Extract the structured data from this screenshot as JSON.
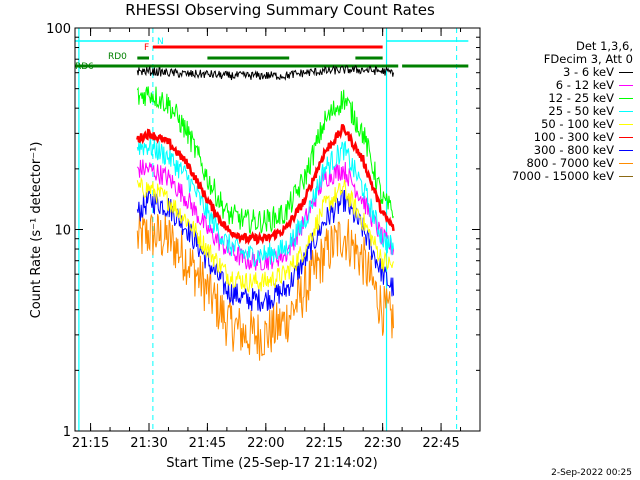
{
  "chart_data": {
    "type": "line",
    "title": "RHESSI Observing Summary Count Rates",
    "xlabel": "Start Time (25-Sep-17 21:14:02)",
    "ylabel": "Count Rate (s⁻¹ detector⁻¹)",
    "y_scale": "log",
    "ylim": [
      1,
      100
    ],
    "xlim": [
      "21:11",
      "22:55"
    ],
    "x_ticks": [
      "21:15",
      "21:30",
      "21:45",
      "22:00",
      "22:15",
      "22:30",
      "22:45"
    ],
    "y_ticks": [
      "1",
      "10",
      "100"
    ],
    "grid": false,
    "legend_position": "right",
    "legend_header": [
      "Det 1,3,6,",
      "FDecim 3, Att 0"
    ],
    "series": [
      {
        "name": "3 - 6 keV",
        "color": "#000000",
        "x": [
          "21:27",
          "21:30",
          "21:35",
          "21:40",
          "21:45",
          "21:50",
          "21:55",
          "22:00",
          "22:05",
          "22:10",
          "22:15",
          "22:20",
          "22:25",
          "22:30",
          "22:33"
        ],
        "values": [
          61,
          61,
          60,
          59,
          59,
          58,
          58,
          58,
          58,
          60,
          61,
          62,
          62,
          61,
          60
        ]
      },
      {
        "name": "6 - 12 keV",
        "color": "#ff00ff",
        "x": [
          "21:27",
          "21:30",
          "21:35",
          "21:40",
          "21:45",
          "21:50",
          "21:55",
          "22:00",
          "22:05",
          "22:10",
          "22:15",
          "22:20",
          "22:25",
          "22:30",
          "22:33"
        ],
        "values": [
          20,
          20,
          18,
          14,
          10,
          8,
          7,
          7,
          7.5,
          11,
          18,
          20,
          14,
          9,
          8
        ]
      },
      {
        "name": "12 - 25 keV",
        "color": "#00ff00",
        "x": [
          "21:27",
          "21:30",
          "21:35",
          "21:40",
          "21:45",
          "21:50",
          "21:55",
          "22:00",
          "22:05",
          "22:10",
          "22:15",
          "22:20",
          "22:25",
          "22:30",
          "22:33"
        ],
        "values": [
          45,
          48,
          42,
          30,
          18,
          12,
          11,
          11,
          12,
          18,
          34,
          45,
          30,
          14,
          12
        ]
      },
      {
        "name": "25 - 50 keV",
        "color": "#00ffff",
        "x": [
          "21:27",
          "21:30",
          "21:35",
          "21:40",
          "21:45",
          "21:50",
          "21:55",
          "22:00",
          "22:05",
          "22:10",
          "22:15",
          "22:20",
          "22:25",
          "22:30",
          "22:33"
        ],
        "values": [
          26,
          26,
          23,
          18,
          12,
          8.5,
          7.5,
          7.5,
          8,
          11,
          20,
          25,
          16,
          9,
          8
        ]
      },
      {
        "name": "50 - 100 keV",
        "color": "#ffff00",
        "x": [
          "21:27",
          "21:30",
          "21:35",
          "21:40",
          "21:45",
          "21:50",
          "21:55",
          "22:00",
          "22:05",
          "22:10",
          "22:15",
          "22:20",
          "22:25",
          "22:30",
          "22:33"
        ],
        "values": [
          16,
          16,
          14,
          11,
          8,
          6,
          5.5,
          5.5,
          6,
          8,
          13,
          16,
          11,
          7,
          6.5
        ]
      },
      {
        "name": "100 - 300 keV",
        "color": "#ff0000",
        "x": [
          "21:27",
          "21:30",
          "21:35",
          "21:40",
          "21:45",
          "21:50",
          "21:55",
          "22:00",
          "22:05",
          "22:10",
          "22:15",
          "22:20",
          "22:25",
          "22:30",
          "22:33"
        ],
        "values": [
          28,
          30,
          27,
          21,
          14,
          10,
          9,
          9,
          10,
          14,
          24,
          32,
          22,
          12,
          10
        ]
      },
      {
        "name": "300 - 800 keV",
        "color": "#0000ff",
        "x": [
          "21:27",
          "21:30",
          "21:35",
          "21:40",
          "21:45",
          "21:50",
          "21:55",
          "22:00",
          "22:05",
          "22:10",
          "22:15",
          "22:20",
          "22:25",
          "22:30",
          "22:33"
        ],
        "values": [
          12,
          14,
          13,
          10,
          7,
          5,
          4.5,
          4.5,
          5,
          7,
          11,
          14,
          10,
          6,
          5
        ]
      },
      {
        "name": "800 - 7000 keV",
        "color": "#ff8c00",
        "x": [
          "21:27",
          "21:30",
          "21:35",
          "21:40",
          "21:45",
          "21:50",
          "21:55",
          "22:00",
          "22:05",
          "22:10",
          "22:15",
          "22:20",
          "22:25",
          "22:30",
          "22:33"
        ],
        "values": [
          9,
          9.5,
          9,
          7,
          5,
          3.5,
          3,
          3,
          3.5,
          5,
          7.5,
          9.5,
          7,
          4,
          3.5
        ]
      },
      {
        "name": "7000 - 15000 keV",
        "color": "#8b6914",
        "x": [],
        "values": []
      }
    ],
    "annotations": {
      "flags": [
        {
          "label": "N",
          "color": "#00ffff",
          "intervals": [
            [
              "21:11",
              "21:30"
            ],
            [
              "22:31",
              "22:52"
            ]
          ]
        },
        {
          "label": "F",
          "color": "#ff0000",
          "intervals": [
            [
              "21:31",
              "22:30"
            ]
          ]
        },
        {
          "label": "RD0",
          "color": "#008000",
          "intervals": [
            [
              "21:27",
              "21:30"
            ],
            [
              "21:45",
              "22:06"
            ],
            [
              "22:23",
              "22:30"
            ]
          ]
        },
        {
          "label": "RD6",
          "color": "#008000",
          "intervals": [
            [
              "21:11",
              "22:34"
            ],
            [
              "22:35",
              "22:52"
            ]
          ]
        }
      ],
      "night_boundaries": [
        "21:12",
        "22:31"
      ],
      "saa_boundaries": [
        "21:31",
        "22:49"
      ]
    }
  },
  "footer": {
    "date": "2-Sep-2022 00:25"
  }
}
